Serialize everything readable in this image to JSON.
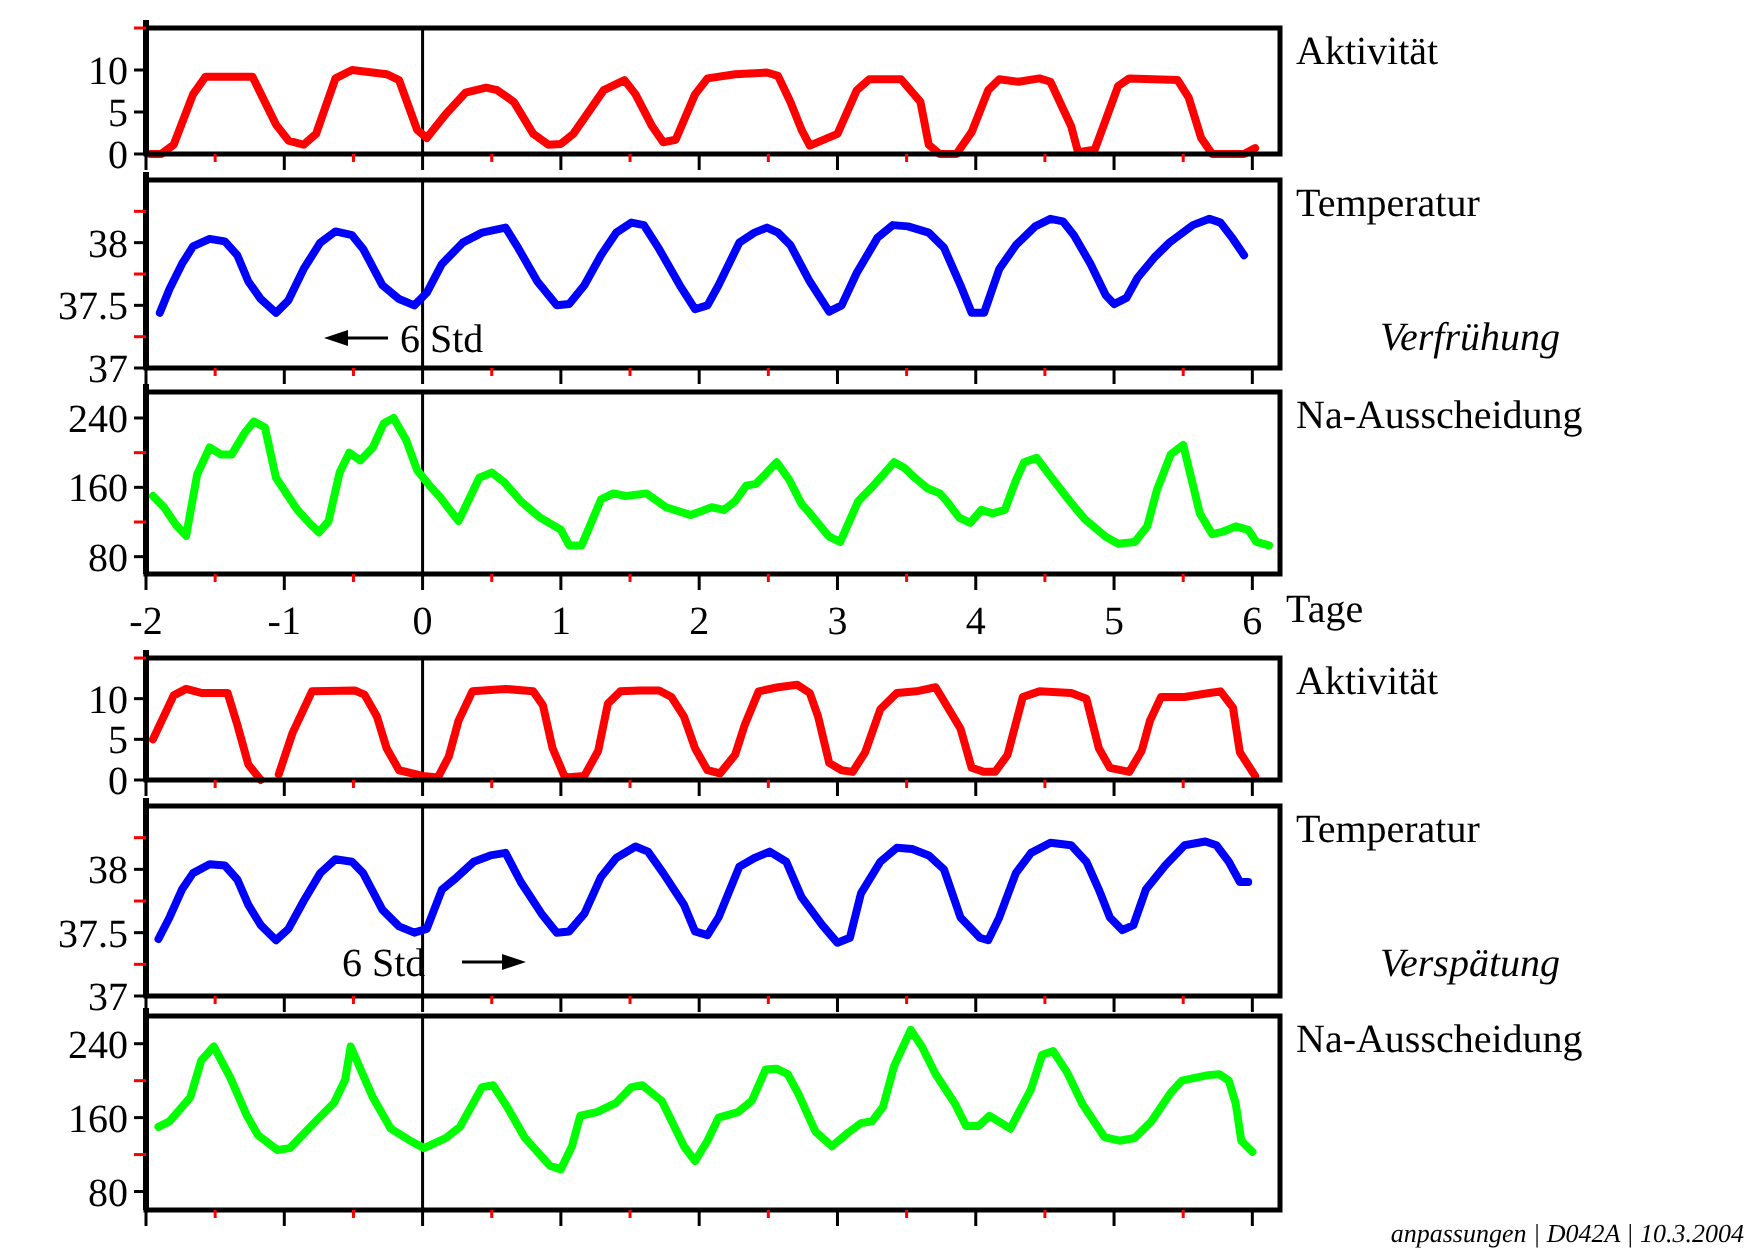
{
  "chart_data": [
    {
      "type": "line",
      "title": "Aktivität",
      "xlim": [
        -2,
        6.2
      ],
      "ylim": [
        0,
        15
      ],
      "xticks": [
        -2,
        {
          "value": -1.5,
          "label": null
        },
        -1,
        {
          "value": -0.5,
          "label": null
        },
        0,
        {
          "value": 0.5,
          "label": null
        },
        1,
        {
          "value": 1.5,
          "label": null
        },
        2,
        {
          "value": 2.5,
          "label": null
        },
        3,
        {
          "value": 3.5,
          "label": null
        },
        4,
        {
          "value": 4.5,
          "label": null
        },
        5,
        {
          "value": 5.5,
          "label": null
        },
        6
      ],
      "yticks": [
        0,
        5,
        10,
        {
          "value": 15,
          "label": null
        }
      ],
      "tick_labels": "y",
      "ref_lines": [
        {
          "axis": "x",
          "value": 0,
          "color": "#000000"
        }
      ],
      "series": [
        {
          "color": "#ff0000",
          "x": [
            -1.97,
            -1.89,
            -1.8,
            -1.66,
            -1.57,
            -1.23,
            -1.06,
            -0.97,
            -0.86,
            -0.77,
            -0.63,
            -0.51,
            -0.26,
            -0.17,
            -0.04,
            0.03,
            0.17,
            0.31,
            0.46,
            0.54,
            0.66,
            0.8,
            0.91,
            1.0,
            1.09,
            1.31,
            1.46,
            1.54,
            1.66,
            1.74,
            1.83,
            1.97,
            2.06,
            2.26,
            2.49,
            2.57,
            2.66,
            2.74,
            2.8,
            3.0,
            3.14,
            3.23,
            3.46,
            3.6,
            3.66,
            3.74,
            3.86,
            3.97,
            4.09,
            4.17,
            4.31,
            4.46,
            4.54,
            4.69,
            4.74,
            4.86,
            5.03,
            5.11,
            5.46,
            5.54,
            5.63,
            5.71,
            5.94,
            6.02
          ],
          "values": [
            0,
            0,
            1.1,
            7.1,
            9.2,
            9.2,
            3.5,
            1.6,
            1.1,
            2.4,
            9.0,
            10,
            9.5,
            8.8,
            2.9,
            1.9,
            4.8,
            7.3,
            7.9,
            7.6,
            6.2,
            2.4,
            1.1,
            1.2,
            2.4,
            7.6,
            8.8,
            7.1,
            3.3,
            1.4,
            1.7,
            7.1,
            9.0,
            9.5,
            9.7,
            9.3,
            6.2,
            2.9,
            1.0,
            2.4,
            7.6,
            8.9,
            8.9,
            6.2,
            1.1,
            0,
            0,
            2.6,
            7.6,
            8.9,
            8.6,
            9.0,
            8.6,
            3.3,
            0.2,
            0.5,
            8.1,
            9.0,
            8.8,
            6.7,
            1.9,
            0,
            0,
            0.7
          ]
        }
      ]
    },
    {
      "type": "line",
      "title": "Temperatur",
      "xlim": [
        -2,
        6.2
      ],
      "ylim": [
        37,
        38.5
      ],
      "xticks": [
        -2,
        {
          "value": -1.5,
          "label": null
        },
        -1,
        {
          "value": -0.5,
          "label": null
        },
        0,
        {
          "value": 0.5,
          "label": null
        },
        1,
        {
          "value": 1.5,
          "label": null
        },
        2,
        {
          "value": 2.5,
          "label": null
        },
        3,
        {
          "value": 3.5,
          "label": null
        },
        4,
        {
          "value": 4.5,
          "label": null
        },
        5,
        {
          "value": 5.5,
          "label": null
        },
        6
      ],
      "yticks": [
        37,
        {
          "value": 37.25,
          "label": null
        },
        37.5,
        {
          "value": 37.75,
          "label": null
        },
        38,
        {
          "value": 38.25,
          "label": null
        }
      ],
      "tick_labels": "y",
      "ref_lines": [
        {
          "axis": "x",
          "value": 0,
          "color": "#000000"
        }
      ],
      "annotations": [
        "6 Std",
        "Verfrühung"
      ],
      "series": [
        {
          "color": "#0000ff",
          "x": [
            -1.9,
            -1.83,
            -1.74,
            -1.66,
            -1.54,
            -1.43,
            -1.34,
            -1.26,
            -1.17,
            -1.06,
            -0.97,
            -0.86,
            -0.74,
            -0.63,
            -0.51,
            -0.43,
            -0.29,
            -0.17,
            -0.06,
            0.03,
            0.14,
            0.29,
            0.43,
            0.6,
            0.69,
            0.83,
            0.97,
            1.06,
            1.17,
            1.29,
            1.4,
            1.51,
            1.6,
            1.71,
            1.86,
            1.97,
            2.06,
            2.14,
            2.29,
            2.4,
            2.49,
            2.57,
            2.66,
            2.8,
            2.94,
            3.03,
            3.14,
            3.29,
            3.4,
            3.51,
            3.66,
            3.77,
            3.89,
            3.97,
            4.06,
            4.17,
            4.29,
            4.43,
            4.54,
            4.63,
            4.71,
            4.83,
            4.94,
            5.0,
            5.09,
            5.17,
            5.29,
            5.4,
            5.57,
            5.69,
            5.77,
            5.86,
            5.94
          ],
          "values": [
            37.44,
            37.63,
            37.83,
            37.97,
            38.03,
            38.01,
            37.9,
            37.69,
            37.55,
            37.44,
            37.54,
            37.79,
            38.0,
            38.09,
            38.06,
            37.95,
            37.66,
            37.55,
            37.5,
            37.6,
            37.83,
            38.0,
            38.08,
            38.12,
            37.96,
            37.69,
            37.5,
            37.51,
            37.66,
            37.9,
            38.08,
            38.16,
            38.14,
            37.95,
            37.66,
            37.47,
            37.5,
            37.66,
            38.0,
            38.08,
            38.12,
            38.08,
            37.98,
            37.69,
            37.45,
            37.5,
            37.76,
            38.04,
            38.14,
            38.13,
            38.08,
            37.96,
            37.66,
            37.44,
            37.44,
            37.79,
            37.98,
            38.13,
            38.19,
            38.17,
            38.06,
            37.83,
            37.58,
            37.51,
            37.56,
            37.72,
            37.88,
            38.0,
            38.14,
            38.19,
            38.16,
            38.03,
            37.9
          ]
        }
      ]
    },
    {
      "type": "line",
      "title": "Na-Ausscheidung",
      "xlabel": "Tage",
      "xlim": [
        -2,
        6.2
      ],
      "ylim": [
        60,
        270
      ],
      "xticks": [
        -2,
        {
          "value": -1.5,
          "label": null
        },
        -1,
        {
          "value": -0.5,
          "label": null
        },
        0,
        {
          "value": 0.5,
          "label": null
        },
        1,
        {
          "value": 1.5,
          "label": null
        },
        2,
        {
          "value": 2.5,
          "label": null
        },
        3,
        {
          "value": 3.5,
          "label": null
        },
        4,
        {
          "value": 4.5,
          "label": null
        },
        5,
        {
          "value": 5.5,
          "label": null
        },
        6
      ],
      "yticks": [
        80,
        {
          "value": 120,
          "label": null
        },
        160,
        {
          "value": 200,
          "label": null
        },
        240
      ],
      "ref_lines": [
        {
          "axis": "x",
          "value": 0,
          "color": "#000000"
        }
      ],
      "series": [
        {
          "color": "#00ff00",
          "x": [
            -1.95,
            -1.87,
            -1.78,
            -1.71,
            -1.63,
            -1.54,
            -1.46,
            -1.38,
            -1.29,
            -1.22,
            -1.14,
            -1.06,
            -0.91,
            -0.82,
            -0.75,
            -0.68,
            -0.6,
            -0.53,
            -0.45,
            -0.36,
            -0.28,
            -0.21,
            -0.12,
            -0.04,
            0.05,
            0.12,
            0.26,
            0.41,
            0.5,
            0.59,
            0.71,
            0.85,
            1.0,
            1.06,
            1.15,
            1.29,
            1.38,
            1.47,
            1.62,
            1.76,
            1.94,
            2.09,
            2.18,
            2.26,
            2.34,
            2.41,
            2.49,
            2.56,
            2.65,
            2.74,
            2.79,
            2.94,
            3.02,
            3.15,
            3.26,
            3.41,
            3.48,
            3.56,
            3.65,
            3.74,
            3.79,
            3.88,
            3.96,
            4.04,
            4.12,
            4.21,
            4.29,
            4.35,
            4.44,
            4.53,
            4.68,
            4.79,
            4.94,
            5.03,
            5.15,
            5.24,
            5.31,
            5.41,
            5.5,
            5.62,
            5.71,
            5.79,
            5.88,
            5.97,
            6.03,
            6.12
          ],
          "values": [
            150,
            137,
            116,
            104,
            175,
            206,
            198,
            198,
            222,
            236,
            229,
            171,
            135,
            119,
            108,
            121,
            177,
            200,
            191,
            206,
            234,
            240,
            215,
            180,
            162,
            150,
            121,
            171,
            177,
            166,
            144,
            125,
            111,
            93,
            93,
            146,
            153,
            150,
            153,
            137,
            128,
            137,
            134,
            144,
            162,
            164,
            177,
            189,
            169,
            141,
            132,
            103,
            97,
            144,
            162,
            189,
            183,
            171,
            159,
            153,
            144,
            125,
            119,
            134,
            130,
            134,
            168,
            189,
            194,
            175,
            144,
            123,
            103,
            95,
            97,
            115,
            157,
            198,
            209,
            130,
            106,
            109,
            115,
            111,
            97,
            93
          ]
        }
      ]
    },
    {
      "type": "line",
      "title": "Aktivität",
      "xlim": [
        -2,
        6.2
      ],
      "ylim": [
        0,
        15
      ],
      "xticks": [
        -2,
        {
          "value": -1.5,
          "label": null
        },
        -1,
        {
          "value": -0.5,
          "label": null
        },
        0,
        {
          "value": 0.5,
          "label": null
        },
        1,
        {
          "value": 1.5,
          "label": null
        },
        2,
        {
          "value": 2.5,
          "label": null
        },
        3,
        {
          "value": 3.5,
          "label": null
        },
        4,
        {
          "value": 4.5,
          "label": null
        },
        5,
        {
          "value": 5.5,
          "label": null
        },
        6
      ],
      "yticks": [
        0,
        5,
        10,
        {
          "value": 15,
          "label": null
        }
      ],
      "tick_labels": "y",
      "ref_lines": [
        {
          "axis": "x",
          "value": 0,
          "color": "#000000"
        }
      ],
      "series": [
        {
          "color": "#ff0000",
          "x": [
            -1.95,
            -1.8,
            -1.71,
            -1.6,
            -1.41,
            -1.34,
            -1.26,
            -1.17,
            -1.1,
            -1.04,
            -0.94,
            -0.8,
            -0.49,
            -0.42,
            -0.33,
            -0.26,
            -0.17,
            0.0,
            0.11,
            0.19,
            0.26,
            0.36,
            0.6,
            0.8,
            0.87,
            0.94,
            1.03,
            1.17,
            1.27,
            1.34,
            1.43,
            1.57,
            1.71,
            1.8,
            1.89,
            1.97,
            2.06,
            2.15,
            2.26,
            2.33,
            2.43,
            2.57,
            2.71,
            2.8,
            2.86,
            2.94,
            3.03,
            3.11,
            3.2,
            3.31,
            3.43,
            3.57,
            3.71,
            3.89,
            3.97,
            4.06,
            4.14,
            4.23,
            4.34,
            4.46,
            4.69,
            4.8,
            4.89,
            4.97,
            5.11,
            5.2,
            5.26,
            5.34,
            5.51,
            5.69,
            5.77,
            5.86,
            5.91,
            6.02
          ],
          "values": [
            5.0,
            10.4,
            11.2,
            10.7,
            10.7,
            6.8,
            1.9,
            0,
            null,
            0.7,
            5.8,
            10.9,
            11.0,
            10.5,
            7.8,
            3.9,
            1.2,
            0.5,
            0.3,
            2.9,
            7.3,
            10.9,
            11.2,
            10.9,
            9.2,
            3.9,
            0.3,
            0.5,
            3.6,
            9.4,
            10.9,
            11.0,
            11.0,
            10.2,
            7.8,
            3.9,
            1.2,
            0.8,
            3.1,
            6.8,
            10.9,
            11.4,
            11.7,
            10.7,
            7.8,
            2.1,
            1.2,
            1.0,
            3.4,
            8.7,
            10.7,
            10.9,
            11.4,
            6.3,
            1.5,
            1.0,
            1.0,
            3.1,
            10.2,
            10.9,
            10.7,
            10.0,
            3.9,
            1.5,
            1.0,
            3.6,
            7.3,
            10.2,
            10.2,
            10.7,
            10.9,
            8.9,
            3.4,
            0.5
          ]
        }
      ]
    },
    {
      "type": "line",
      "title": "Temperatur",
      "xlim": [
        -2,
        6.2
      ],
      "ylim": [
        37,
        38.5
      ],
      "xticks": [
        -2,
        {
          "value": -1.5,
          "label": null
        },
        -1,
        {
          "value": -0.5,
          "label": null
        },
        0,
        {
          "value": 0.5,
          "label": null
        },
        1,
        {
          "value": 1.5,
          "label": null
        },
        2,
        {
          "value": 2.5,
          "label": null
        },
        3,
        {
          "value": 3.5,
          "label": null
        },
        4,
        {
          "value": 4.5,
          "label": null
        },
        5,
        {
          "value": 5.5,
          "label": null
        },
        6
      ],
      "yticks": [
        37,
        {
          "value": 37.25,
          "label": null
        },
        37.5,
        {
          "value": 37.75,
          "label": null
        },
        38,
        {
          "value": 38.25,
          "label": null
        }
      ],
      "tick_labels": "y",
      "ref_lines": [
        {
          "axis": "x",
          "value": 0,
          "color": "#000000"
        }
      ],
      "annotations": [
        "6 Std",
        "Verspätung"
      ],
      "series": [
        {
          "color": "#0000ff",
          "x": [
            -1.91,
            -1.83,
            -1.74,
            -1.66,
            -1.54,
            -1.43,
            -1.34,
            -1.26,
            -1.17,
            -1.06,
            -0.97,
            -0.86,
            -0.74,
            -0.63,
            -0.51,
            -0.43,
            -0.29,
            -0.17,
            -0.06,
            0.03,
            0.14,
            0.23,
            0.37,
            0.49,
            0.6,
            0.71,
            0.86,
            0.97,
            1.06,
            1.17,
            1.29,
            1.4,
            1.54,
            1.63,
            1.74,
            1.89,
            1.97,
            2.06,
            2.14,
            2.29,
            2.4,
            2.51,
            2.63,
            2.74,
            2.89,
            3.0,
            3.09,
            3.17,
            3.31,
            3.43,
            3.54,
            3.66,
            3.77,
            3.89,
            4.03,
            4.09,
            4.17,
            4.29,
            4.4,
            4.54,
            4.69,
            4.8,
            4.89,
            4.97,
            5.06,
            5.14,
            5.23,
            5.37,
            5.51,
            5.66,
            5.74,
            5.83,
            5.91,
            5.97
          ],
          "values": [
            37.45,
            37.62,
            37.84,
            37.97,
            38.04,
            38.03,
            37.92,
            37.72,
            37.56,
            37.44,
            37.53,
            37.75,
            37.97,
            38.08,
            38.06,
            37.97,
            37.68,
            37.55,
            37.5,
            37.53,
            37.84,
            37.92,
            38.06,
            38.11,
            38.13,
            37.9,
            37.65,
            37.5,
            37.51,
            37.65,
            37.94,
            38.09,
            38.18,
            38.14,
            37.97,
            37.72,
            37.51,
            37.48,
            37.62,
            38.02,
            38.09,
            38.14,
            38.06,
            37.78,
            37.56,
            37.42,
            37.46,
            37.81,
            38.06,
            38.17,
            38.16,
            38.11,
            38.0,
            37.62,
            37.46,
            37.44,
            37.62,
            37.97,
            38.13,
            38.21,
            38.19,
            38.06,
            37.84,
            37.62,
            37.52,
            37.56,
            37.84,
            38.03,
            38.19,
            38.22,
            38.19,
            38.06,
            37.9,
            37.9
          ]
        }
      ]
    },
    {
      "type": "line",
      "title": "Na-Ausscheidung",
      "xlim": [
        -2,
        6.2
      ],
      "ylim": [
        60,
        270
      ],
      "xticks": [
        -2,
        {
          "value": -1.5,
          "label": null
        },
        -1,
        {
          "value": -0.5,
          "label": null
        },
        0,
        {
          "value": 0.5,
          "label": null
        },
        1,
        {
          "value": 1.5,
          "label": null
        },
        2,
        {
          "value": 2.5,
          "label": null
        },
        3,
        {
          "value": 3.5,
          "label": null
        },
        4,
        {
          "value": 4.5,
          "label": null
        },
        5,
        {
          "value": 5.5,
          "label": null
        },
        6
      ],
      "yticks": [
        80,
        {
          "value": 120,
          "label": null
        },
        160,
        {
          "value": 200,
          "label": null
        },
        240
      ],
      "tick_labels": "y",
      "ref_lines": [
        {
          "axis": "x",
          "value": 0,
          "color": "#000000"
        }
      ],
      "annotations": [
        "anpassungen | D042A | 10.3.2004"
      ],
      "series": [
        {
          "color": "#00ff00",
          "x": [
            -1.91,
            -1.83,
            -1.68,
            -1.6,
            -1.51,
            -1.39,
            -1.27,
            -1.19,
            -1.05,
            -0.96,
            -0.76,
            -0.64,
            -0.56,
            -0.52,
            -0.36,
            -0.23,
            -0.09,
            0.01,
            0.17,
            0.27,
            0.43,
            0.51,
            0.61,
            0.74,
            0.92,
            1.0,
            1.08,
            1.14,
            1.26,
            1.4,
            1.51,
            1.59,
            1.73,
            1.89,
            1.97,
            2.06,
            2.14,
            2.28,
            2.38,
            2.48,
            2.56,
            2.64,
            2.72,
            2.84,
            2.96,
            3.08,
            3.17,
            3.25,
            3.33,
            3.41,
            3.53,
            3.61,
            3.71,
            3.85,
            3.93,
            4.02,
            4.1,
            4.25,
            4.4,
            4.48,
            4.56,
            4.66,
            4.77,
            4.93,
            5.04,
            5.15,
            5.27,
            5.41,
            5.49,
            5.68,
            5.76,
            5.83,
            5.88,
            5.92,
            6.0
          ],
          "values": [
            150,
            156,
            182,
            222,
            237,
            203,
            162,
            141,
            125,
            127,
            158,
            176,
            201,
            237,
            182,
            148,
            135,
            127,
            138,
            150,
            193,
            195,
            172,
            138,
            108,
            104,
            129,
            162,
            166,
            176,
            193,
            195,
            178,
            129,
            113,
            135,
            160,
            166,
            178,
            212,
            213,
            207,
            185,
            145,
            129,
            144,
            154,
            156,
            172,
            216,
            255,
            237,
            207,
            175,
            151,
            151,
            162,
            148,
            191,
            228,
            232,
            209,
            175,
            139,
            135,
            138,
            156,
            187,
            200,
            206,
            207,
            200,
            175,
            135,
            123
          ]
        }
      ]
    }
  ]
}
